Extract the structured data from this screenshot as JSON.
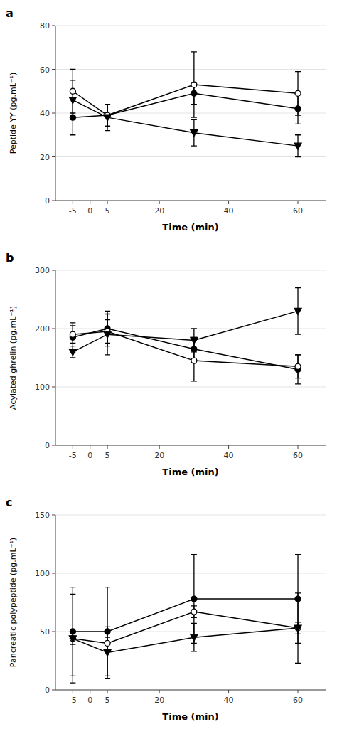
{
  "chart_data": [
    {
      "type": "line",
      "title": "a",
      "x_label": "Time (min)",
      "y_label": "Peptide YY (pg.mL⁻¹)",
      "x": [
        -5,
        5,
        30,
        60
      ],
      "xlim": [
        -10,
        68
      ],
      "xticks": [
        -5,
        0,
        5,
        20,
        40,
        60
      ],
      "ylim": [
        0,
        80
      ],
      "yticks": [
        0,
        20,
        40,
        60,
        80
      ],
      "series": [
        {
          "values": [
            38,
            39,
            49,
            42
          ],
          "yerr": [
            8,
            5,
            5,
            7
          ],
          "marker": "circle",
          "color": "#000000"
        },
        {
          "values": [
            50,
            39,
            53,
            49
          ],
          "yerr": [
            10,
            5,
            15,
            10
          ],
          "marker": "open-circle",
          "color": "#000000"
        },
        {
          "values": [
            46,
            38,
            31,
            25
          ],
          "yerr": [
            9,
            6,
            6,
            5
          ],
          "marker": "triangle-down",
          "color": "#000000"
        }
      ]
    },
    {
      "type": "line",
      "title": "b",
      "x_label": "Time (min)",
      "y_label": "Acylated ghrelin (pg.mL⁻¹)",
      "x": [
        -5,
        5,
        30,
        60
      ],
      "xlim": [
        -10,
        68
      ],
      "xticks": [
        -5,
        0,
        5,
        20,
        40,
        60
      ],
      "ylim": [
        0,
        300
      ],
      "yticks": [
        0,
        100,
        200,
        300
      ],
      "series": [
        {
          "values": [
            185,
            200,
            165,
            130
          ],
          "yerr": [
            25,
            30,
            20,
            25
          ],
          "marker": "circle",
          "color": "#000000"
        },
        {
          "values": [
            190,
            195,
            145,
            135
          ],
          "yerr": [
            15,
            20,
            35,
            20
          ],
          "marker": "open-circle",
          "color": "#000000"
        },
        {
          "values": [
            160,
            190,
            180,
            230
          ],
          "yerr": [
            10,
            35,
            20,
            40
          ],
          "marker": "triangle-down",
          "color": "#000000"
        }
      ]
    },
    {
      "type": "line",
      "title": "c",
      "x_label": "Time (min)",
      "y_label": "Pancreatic polypeptide (pg.mL⁻¹)",
      "x": [
        -5,
        5,
        30,
        60
      ],
      "xlim": [
        -10,
        68
      ],
      "xticks": [
        -5,
        0,
        5,
        20,
        40,
        60
      ],
      "ylim": [
        0,
        150
      ],
      "yticks": [
        0,
        50,
        100,
        150
      ],
      "series": [
        {
          "values": [
            50,
            50,
            78,
            78
          ],
          "yerr": [
            38,
            38,
            38,
            38
          ],
          "marker": "circle",
          "color": "#000000"
        },
        {
          "values": [
            44,
            40,
            67,
            53
          ],
          "yerr": [
            5,
            5,
            5,
            30
          ],
          "marker": "open-circle",
          "color": "#000000"
        },
        {
          "values": [
            44,
            32,
            45,
            53
          ],
          "yerr": [
            38,
            22,
            12,
            5
          ],
          "marker": "triangle-down",
          "color": "#000000"
        }
      ]
    }
  ]
}
